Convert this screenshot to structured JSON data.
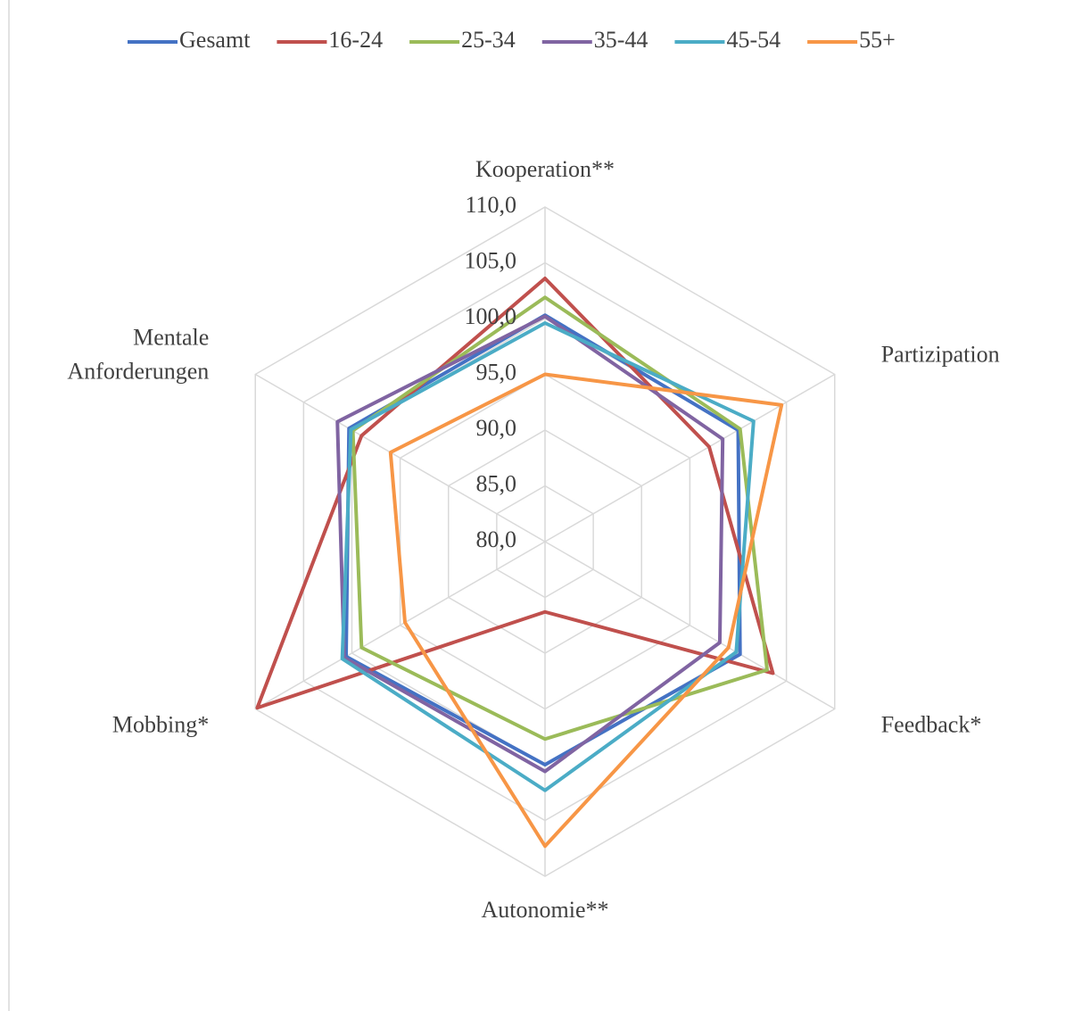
{
  "chart_data": {
    "type": "radar",
    "categories": [
      "Kooperation**",
      "Partizipation",
      "Feedback*",
      "Autonomie**",
      "Mobbing*",
      "Mentale Anforderungen"
    ],
    "rlim": [
      80,
      110
    ],
    "rticks": [
      {
        "value": 80,
        "label": "80,0"
      },
      {
        "value": 85,
        "label": "85,0"
      },
      {
        "value": 90,
        "label": "90,0"
      },
      {
        "value": 95,
        "label": "95,0"
      },
      {
        "value": 100,
        "label": "100,0"
      },
      {
        "value": 105,
        "label": "105,0"
      },
      {
        "value": 110,
        "label": "110,0"
      }
    ],
    "grid": true,
    "legend": "top",
    "series": [
      {
        "name": "Gesamt",
        "color": "#4472c4",
        "values": [
          100.3,
          100.0,
          100.2,
          100.0,
          100.6,
          100.3
        ]
      },
      {
        "name": "16-24",
        "color": "#c0504d",
        "values": [
          103.6,
          97.0,
          103.6,
          86.3,
          109.8,
          99.0
        ]
      },
      {
        "name": "25-34",
        "color": "#9bbb59",
        "values": [
          101.9,
          100.2,
          103.0,
          97.7,
          99.0,
          99.9
        ]
      },
      {
        "name": "35-44",
        "color": "#8064a2",
        "values": [
          100.2,
          98.4,
          98.1,
          100.6,
          100.8,
          101.5
        ]
      },
      {
        "name": "45-54",
        "color": "#4bacc6",
        "values": [
          99.6,
          101.6,
          99.8,
          102.3,
          101.0,
          100.1
        ]
      },
      {
        "name": "55+",
        "color": "#f79646",
        "values": [
          95.0,
          104.5,
          99.0,
          107.3,
          94.5,
          96.0
        ]
      }
    ]
  }
}
